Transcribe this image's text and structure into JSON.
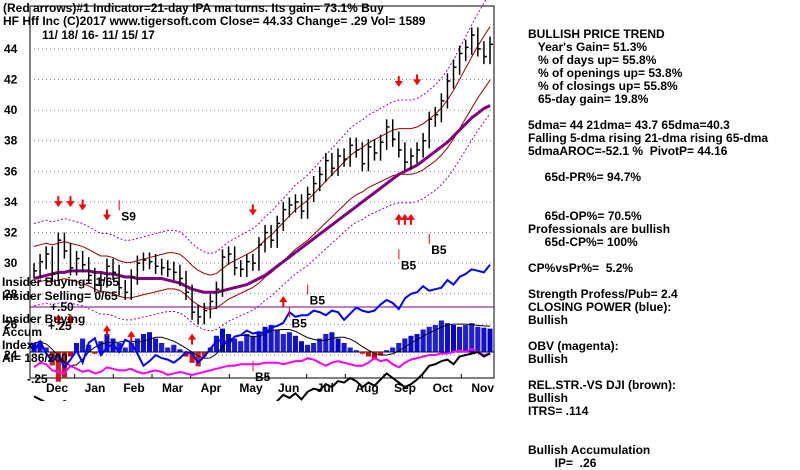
{
  "header": {
    "line1": "(Red arrows)#1 Indicator=21-day IPA ma turns. Its gain= 73.1% Buy",
    "line2": "HF  Hff Inc  (C)2017 www.tigersoft.com   Close=  44.33  Change= .29 Vol= 1589",
    "line3": "11/ 18/ 16-  11/ 15/ 17"
  },
  "panel": {
    "title": "BULLISH PRICE TREND",
    "lines": [
      "   Year's Gain= 51.3%",
      "   % of days up= 55.8%",
      "   % of openings up= 53.8%",
      "   % of closings up= 55.8%",
      "   65-day gain= 19.8%",
      "",
      "5dma= 44 21dma= 43.7 65dma=40.3",
      "Falling 5-dma rising 21-dma rising 65-dma",
      "5dmaAROC=-52.1 %  PivotP= 44.16",
      "",
      "     65d-PR%= 94.7%",
      "",
      "",
      "     65d-OP%= 70.5%",
      "Professionals are bullish",
      "     65d-CP%= 100%",
      "",
      "CP%vsPr%=  5.2%",
      "",
      "Strength Profess/Pub= 2.4",
      "CLOSING POWER (blue):",
      "Bullish",
      "",
      "OBV (magenta):",
      "Bullish",
      "",
      "REL.STR.-VS DJI (brown):",
      "Bullish",
      "ITRS= .114",
      "",
      "",
      "Bullish Accumulation",
      "        IP=  .26"
    ]
  },
  "insider": {
    "buying": "Insider Buying= 1/65",
    "selling": "Insider Selling= 0/65",
    "accum_title": "Insider Buying",
    "accum_line": "Accum",
    "index_line": "Index",
    "ai_line": "AI= 186/200"
  },
  "chart_data": {
    "type": "line",
    "title": "",
    "x": [
      "Dec",
      "Jan",
      "Feb",
      "Mar",
      "Apr",
      "May",
      "Jun",
      "Jul",
      "Aug",
      "Sep",
      "Oct",
      "Nov"
    ],
    "yticks": [
      24,
      26,
      28,
      30,
      32,
      34,
      36,
      38,
      40,
      42,
      44
    ],
    "ylim": [
      22.5,
      46.8
    ],
    "grid": true,
    "price_close": [
      29.5,
      30.1,
      30.6,
      29.3,
      31.5,
      30.8,
      29.7,
      30.3,
      29.9,
      29.2,
      28.6,
      28.9,
      29.8,
      29.4,
      28.4,
      28.1,
      29.1,
      30.0,
      30.2,
      30.1,
      29.8,
      29.7,
      29.6,
      29.4,
      29.0,
      28.1,
      26.8,
      26.5,
      26.9,
      27.5,
      28.3,
      30.4,
      30.6,
      29.7,
      29.6,
      30.1,
      30.0,
      31.2,
      32.0,
      31.5,
      32.6,
      33.5,
      33.8,
      34.0,
      33.4,
      34.5,
      35.2,
      35.8,
      36.7,
      36.2,
      37.0,
      36.8,
      37.7,
      37.4,
      36.5,
      37.6,
      37.2,
      37.9,
      38.9,
      38.1,
      37.4,
      36.6,
      37.0,
      37.4,
      38.0,
      39.4,
      39.7,
      40.6,
      41.9,
      42.8,
      43.7,
      44.1,
      44.9,
      44.0,
      43.5,
      44.3
    ],
    "ma21": [
      29.9,
      30.0,
      30.1,
      30.0,
      30.1,
      30.2,
      30.1,
      30.0,
      29.9,
      29.7,
      29.5,
      29.3,
      29.3,
      29.2,
      29.0,
      28.9,
      28.9,
      29.0,
      29.1,
      29.2,
      29.3,
      29.4,
      29.5,
      29.5,
      29.4,
      29.1,
      28.7,
      28.4,
      28.2,
      28.1,
      28.2,
      28.5,
      28.8,
      29.0,
      29.2,
      29.4,
      29.6,
      29.9,
      30.3,
      30.6,
      31.0,
      31.4,
      31.8,
      32.2,
      32.5,
      32.8,
      33.2,
      33.6,
      34.0,
      34.4,
      34.8,
      35.2,
      35.6,
      35.9,
      36.1,
      36.4,
      36.6,
      36.8,
      37.0,
      37.2,
      37.3,
      37.3,
      37.3,
      37.4,
      37.6,
      37.9,
      38.2,
      38.6,
      39.1,
      39.7,
      40.4,
      41.1,
      41.8,
      42.5,
      43.1,
      43.7
    ],
    "ma65": [
      29.0,
      29.1,
      29.2,
      29.3,
      29.4,
      29.4,
      29.5,
      29.5,
      29.5,
      29.5,
      29.4,
      29.4,
      29.3,
      29.3,
      29.2,
      29.1,
      29.1,
      29.0,
      29.0,
      29.0,
      29.0,
      29.0,
      28.9,
      28.8,
      28.7,
      28.5,
      28.3,
      28.2,
      28.1,
      28.1,
      28.1,
      28.2,
      28.3,
      28.4,
      28.5,
      28.6,
      28.8,
      29.0,
      29.2,
      29.5,
      29.8,
      30.1,
      30.4,
      30.7,
      31.0,
      31.3,
      31.6,
      31.9,
      32.2,
      32.5,
      32.8,
      33.1,
      33.4,
      33.7,
      34.0,
      34.3,
      34.6,
      34.9,
      35.2,
      35.5,
      35.8,
      36.0,
      36.2,
      36.4,
      36.7,
      37.0,
      37.3,
      37.6,
      37.9,
      38.3,
      38.7,
      39.1,
      39.5,
      39.8,
      40.1,
      40.3
    ],
    "closing_power": [
      24.2,
      24.9,
      24.1,
      23.6,
      24.0,
      23.2,
      23.7,
      24.3,
      23.5,
      24.8,
      25.1,
      24.0,
      24.5,
      24.7,
      24.2,
      25.0,
      24.8,
      24.1,
      23.3,
      23.6,
      24.0,
      23.8,
      23.7,
      23.5,
      23.8,
      24.2,
      24.1,
      23.5,
      23.9,
      24.4,
      24.9,
      25.0,
      24.7,
      25.2,
      25.3,
      25.6,
      25.4,
      25.5,
      25.4,
      25.8,
      25.9,
      26.1,
      26.8,
      26.5,
      26.6,
      26.6,
      26.9,
      26.8,
      26.6,
      26.9,
      26.8,
      26.3,
      26.7,
      27.1,
      26.9,
      26.8,
      26.9,
      27.3,
      27.6,
      27.4,
      27.0,
      27.7,
      28.0,
      28.1,
      28.5,
      28.2,
      28.3,
      28.4,
      28.9,
      28.6,
      29.1,
      29.3,
      29.6,
      29.5,
      29.4,
      29.9
    ],
    "obv": [
      23.2,
      23.5,
      23.4,
      23.0,
      22.9,
      22.8,
      23.3,
      23.1,
      22.9,
      23.0,
      22.8,
      22.9,
      23.2,
      23.1,
      23.0,
      23.0,
      23.1,
      22.9,
      22.8,
      22.9,
      23.0,
      22.9,
      22.7,
      22.8,
      22.9,
      22.8,
      22.7,
      22.8,
      22.9,
      23.0,
      23.1,
      23.2,
      23.3,
      23.3,
      23.4,
      23.4,
      23.4,
      23.4,
      23.5,
      23.5,
      23.5,
      23.4,
      23.5,
      23.6,
      23.6,
      23.8,
      23.7,
      23.5,
      23.3,
      23.5,
      23.6,
      23.5,
      23.4,
      23.3,
      23.3,
      23.5,
      23.8,
      23.6,
      23.7,
      23.4,
      23.2,
      23.5,
      23.7,
      23.8,
      23.9,
      24.0,
      24.0,
      24.1,
      24.1,
      24.2,
      24.3,
      24.2,
      24.4,
      24.2,
      24.0,
      24.1
    ],
    "rel_strength": [
      21.3,
      21.1,
      20.9,
      20.8,
      20.7,
      21.0,
      20.8,
      20.6,
      20.7,
      20.5,
      20.3,
      20.1,
      20.6,
      20.4,
      20.2,
      20.1,
      20.3,
      20.5,
      20.7,
      20.4,
      20.2,
      20.0,
      19.9,
      19.3,
      18.9,
      18.4,
      18.6,
      18.2,
      18.0,
      18.4,
      19.0,
      20.6,
      20.5,
      20.2,
      20.0,
      20.1,
      19.9,
      20.3,
      20.8,
      20.4,
      21.0,
      21.4,
      21.2,
      21.5,
      21.1,
      21.6,
      21.8,
      21.7,
      22.1,
      21.9,
      22.3,
      22.2,
      22.5,
      22.3,
      21.9,
      22.2,
      22.0,
      22.4,
      22.8,
      22.5,
      22.2,
      21.9,
      22.1,
      22.4,
      22.8,
      23.3,
      23.4,
      23.6,
      23.7,
      23.4,
      23.9,
      24.0,
      24.1,
      24.2,
      23.9,
      24.1
    ],
    "accumulation": [
      0.1,
      0.12,
      0.05,
      -0.15,
      -0.33,
      -0.28,
      -0.05,
      0.1,
      0.15,
      0.08,
      -0.02,
      0.12,
      0.2,
      0.15,
      0.1,
      0.05,
      0.1,
      0.15,
      0.2,
      0.22,
      0.15,
      0.1,
      0.05,
      0.08,
      0.03,
      -0.05,
      -0.12,
      -0.16,
      -0.05,
      0.05,
      0.18,
      0.26,
      0.2,
      0.15,
      0.12,
      0.2,
      0.18,
      0.22,
      0.28,
      0.3,
      0.25,
      0.2,
      0.22,
      0.18,
      0.12,
      0.08,
      0.1,
      0.15,
      0.2,
      0.22,
      0.15,
      0.1,
      0.05,
      0.02,
      -0.02,
      -0.05,
      -0.08,
      -0.04,
      0.02,
      0.05,
      0.1,
      0.15,
      0.18,
      0.2,
      0.25,
      0.28,
      0.3,
      0.35,
      0.32,
      0.3,
      0.28,
      0.3,
      0.32,
      0.28,
      0.27,
      0.26
    ],
    "accum_levels": [
      "+.50",
      "+.25",
      "-.25"
    ],
    "annotations": [
      {
        "text": "S9",
        "xi": 15,
        "y": 32.8
      },
      {
        "text": "B5",
        "xi": 37,
        "y": 22.3
      },
      {
        "text": "B5",
        "xi": 43,
        "y": 25.8
      },
      {
        "text": "B5",
        "xi": 46,
        "y": 27.3
      },
      {
        "text": "B5",
        "xi": 61,
        "y": 29.6
      },
      {
        "text": "B5",
        "xi": 66,
        "y": 30.6
      }
    ],
    "buy_arrows": [
      4,
      6,
      12,
      16,
      26,
      41,
      60,
      61,
      62
    ],
    "sell_arrows": [
      4,
      6,
      8,
      12,
      36,
      60,
      63
    ]
  }
}
